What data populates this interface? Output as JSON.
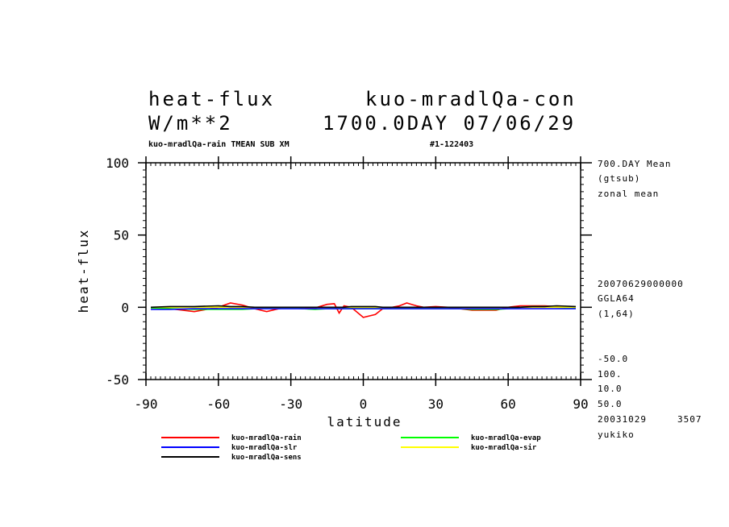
{
  "header": {
    "title_left": "heat-flux",
    "title_right": "kuo-mradlQa-con",
    "units": "W/m**2",
    "time_label": "1700.0DAY 07/06/29",
    "subtitle_left": "kuo-mradlQa-rain TMEAN SUB XM",
    "subtitle_right": "#1-122403"
  },
  "side_info": {
    "mean": "700.DAY Mean",
    "gtsub": "(gtsub)",
    "zonal": "zonal mean",
    "date_code": "20070629000000",
    "grid": "GGLA64",
    "range": "(1,64)",
    "p1": "-50.0",
    "p2": "100.",
    "p3": "10.0",
    "p4": "50.0",
    "created": "20031029",
    "num": "3507",
    "user": "yukiko"
  },
  "chart_data": {
    "type": "line",
    "xlabel": "latitude",
    "ylabel": "heat-flux",
    "xlim": [
      -90,
      90
    ],
    "ylim": [
      -50,
      100
    ],
    "xticks": [
      -90,
      -60,
      -30,
      0,
      30,
      60,
      90
    ],
    "yticks": [
      -50,
      0,
      50,
      100
    ],
    "grid": false,
    "legend_position": "bottom",
    "x": [
      -88,
      -80,
      -70,
      -60,
      -55,
      -50,
      -45,
      -40,
      -35,
      -30,
      -25,
      -20,
      -15,
      -12,
      -10,
      -8,
      -5,
      0,
      5,
      8,
      12,
      15,
      18,
      22,
      25,
      30,
      35,
      40,
      45,
      50,
      55,
      60,
      65,
      70,
      75,
      80,
      88
    ],
    "series": [
      {
        "name": "kuo-mradlQa-rain",
        "color": "#ff0000",
        "values": [
          0,
          -1,
          -3,
          0,
          3,
          1.5,
          -1,
          -3,
          -1,
          0,
          -1,
          -0.5,
          2,
          2.5,
          -4,
          1,
          0,
          -7,
          -5,
          -1,
          0,
          1,
          3,
          1,
          0,
          0.5,
          0,
          -1,
          -2,
          -2,
          -2,
          0,
          1,
          1,
          1,
          0.5,
          0
        ]
      },
      {
        "name": "kuo-mradlQa-evap",
        "color": "#00ff00",
        "values": [
          -0.5,
          -1,
          -1.5,
          -1.5,
          -1.5,
          -1.5,
          -1,
          -0.5,
          -0.5,
          -0.5,
          -1,
          -1.5,
          -1,
          -1,
          -1,
          -1,
          -1,
          -1,
          -1,
          -1,
          -1,
          -1,
          -1,
          -1,
          -1,
          -1,
          -1,
          -1,
          -1.5,
          -1.5,
          -1.5,
          -1,
          0,
          0.5,
          0.5,
          0,
          -0.5
        ]
      },
      {
        "name": "kuo-mradlQa-slr",
        "color": "#0000ff",
        "values": [
          -1.5,
          -1.5,
          -1,
          -1,
          -1,
          -1,
          -1,
          -1,
          -1,
          -1,
          -1,
          -1,
          -1,
          -1,
          -1,
          -1,
          -1,
          -1,
          -1,
          -1,
          -1,
          -1,
          -1,
          -1,
          -1,
          -1,
          -1,
          -1,
          -1,
          -1,
          -1,
          -1,
          -1,
          -1,
          -1,
          -1,
          -1
        ]
      },
      {
        "name": "kuo-mradlQa-sir",
        "color": "#ffff00",
        "values": [
          0,
          0,
          0,
          0,
          0,
          0,
          0,
          0,
          0,
          0,
          0,
          0,
          0,
          0,
          0,
          0,
          0,
          0,
          0,
          0,
          0,
          0,
          0,
          0,
          0,
          0,
          0,
          0,
          0,
          0,
          0,
          0,
          0,
          0,
          0,
          0,
          0
        ]
      },
      {
        "name": "kuo-mradlQa-sens",
        "color": "#000000",
        "values": [
          0,
          0.5,
          0.5,
          1,
          0.5,
          0.5,
          0,
          0,
          0,
          0,
          0,
          0,
          0,
          0,
          0,
          0,
          0.5,
          0.5,
          0.5,
          0,
          0,
          0,
          0,
          0,
          0,
          0,
          0,
          0,
          0,
          0,
          0,
          0,
          0,
          0.5,
          0.5,
          1,
          0.5
        ]
      }
    ]
  }
}
